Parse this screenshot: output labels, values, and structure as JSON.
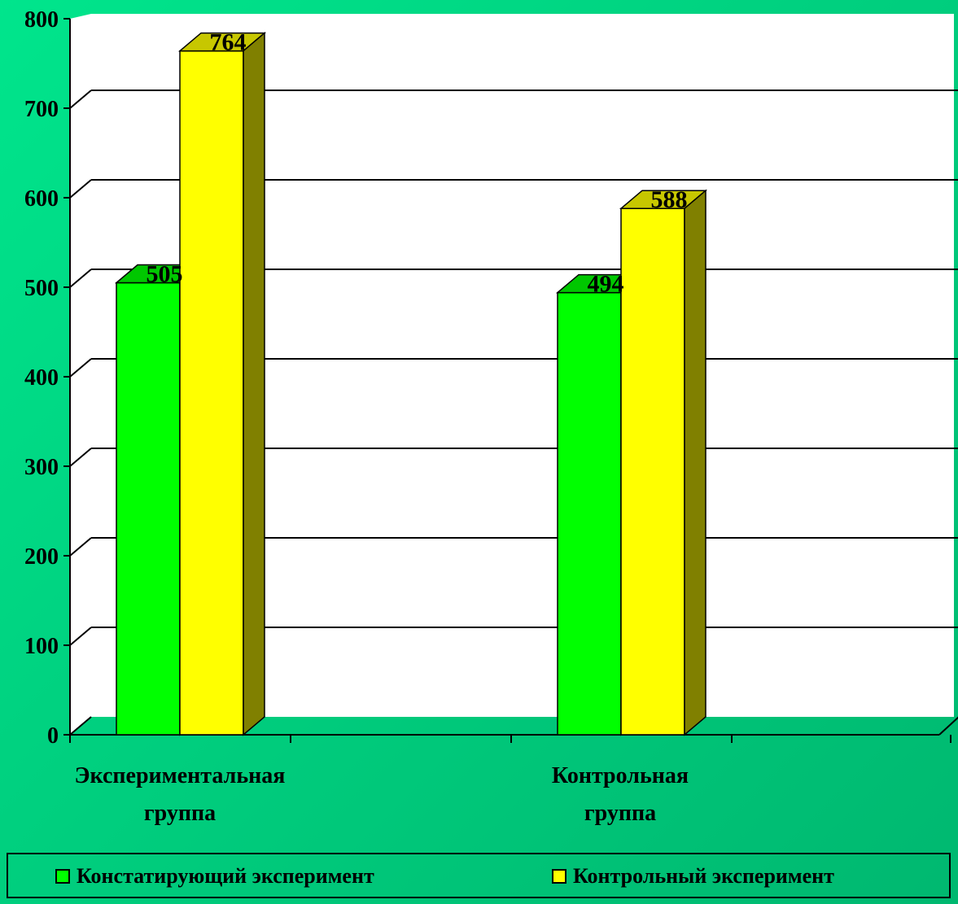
{
  "chart_data": {
    "type": "bar",
    "title": "",
    "xlabel": "",
    "ylabel": "",
    "ylim": [
      0,
      800
    ],
    "yticks": [
      0,
      100,
      200,
      300,
      400,
      500,
      600,
      700,
      800
    ],
    "grid": true,
    "legend_position": "bottom",
    "categories": [
      [
        "Экспериментальная",
        "группа"
      ],
      [
        "Контрольная",
        "группа"
      ]
    ],
    "series": [
      {
        "name": "Констатирующий эксперимент",
        "values": [
          505,
          494
        ],
        "color": "#00ff00",
        "label_color": "#000000"
      },
      {
        "name": "Контрольный эксперимент",
        "values": [
          764,
          588
        ],
        "color": "#ffff00",
        "label_color": "#000000"
      }
    ],
    "data_labels": true
  }
}
